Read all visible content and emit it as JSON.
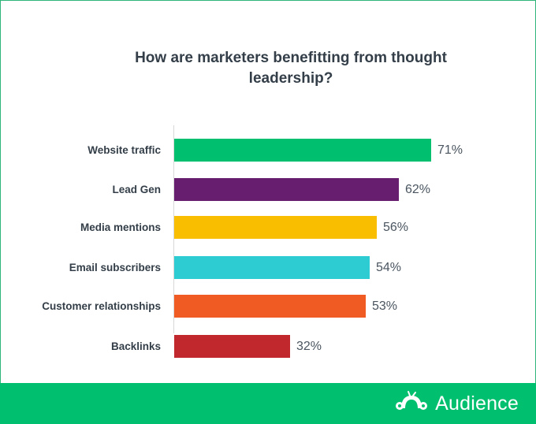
{
  "chart_data": {
    "type": "bar",
    "orientation": "horizontal",
    "title": "How are marketers benefitting from thought leadership?",
    "categories": [
      "Website traffic",
      "Lead Gen",
      "Media mentions",
      "Email subscribers",
      "Customer relationships",
      "Backlinks"
    ],
    "values": [
      71,
      62,
      56,
      54,
      53,
      32
    ],
    "value_labels": [
      "71%",
      "62%",
      "56%",
      "54%",
      "53%",
      "32%"
    ],
    "colors": [
      "#00bf6f",
      "#671e6f",
      "#f9be00",
      "#2dccd3",
      "#f05b24",
      "#c1282d"
    ],
    "xlabel": "",
    "ylabel": "",
    "unit": "%",
    "grid": false,
    "legend": null
  },
  "title_line1": "How are marketers benefitting from thought",
  "title_line2": "leadership?",
  "footer": {
    "brand_name": "Audience",
    "brand_icon": "surveymonkey-icon",
    "background": "#00bf6f"
  }
}
